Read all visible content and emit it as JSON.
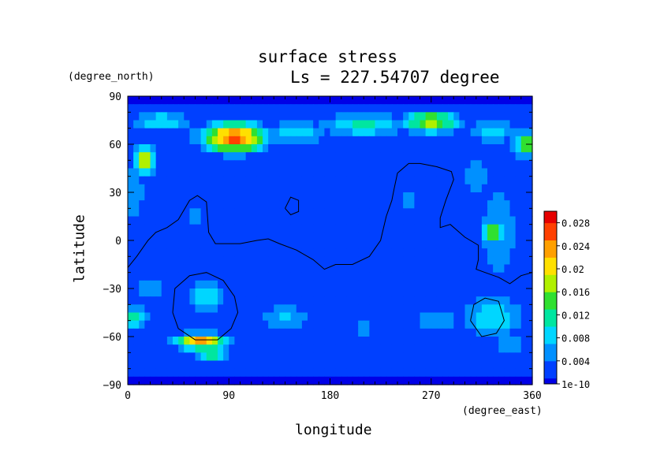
{
  "chart_data": {
    "type": "heatmap",
    "title": "surface stress",
    "subtitle": "Ls = 227.54707 degree",
    "xlabel": "longitude",
    "ylabel": "latitude",
    "x_unit": "(degree_east)",
    "y_unit": "(degree_north)",
    "xlim": [
      0,
      360
    ],
    "ylim": [
      -90,
      90
    ],
    "x_ticks": [
      "0",
      "90",
      "180",
      "270",
      "360"
    ],
    "y_ticks": [
      "90",
      "60",
      "30",
      "0",
      "−30",
      "−60",
      "−90"
    ],
    "colorbar_labels": [
      "0.028",
      "0.024",
      "0.02",
      "0.016",
      "0.012",
      "0.008",
      "0.004",
      "1e-10"
    ],
    "colorbar_range": [
      0,
      0.03
    ],
    "colormap": [
      "#0000e6",
      "#0040ff",
      "#0090ff",
      "#00d6ff",
      "#00e6a0",
      "#30e030",
      "#b0f000",
      "#ffe000",
      "#ffa000",
      "#ff4000",
      "#e60000"
    ],
    "background_value": 0.003,
    "features": [
      {
        "lon": 95,
        "lat": 64,
        "w": 28,
        "h": 9,
        "v": 0.028
      },
      {
        "lon": 95,
        "lat": 64,
        "w": 8,
        "h": 2.5,
        "v": 0.0305
      },
      {
        "lon": 30,
        "lat": 74,
        "w": 26,
        "h": 7,
        "v": 0.01
      },
      {
        "lon": 75,
        "lat": 67,
        "w": 18,
        "h": 6,
        "v": 0.012
      },
      {
        "lon": 150,
        "lat": 67,
        "w": 30,
        "h": 7,
        "v": 0.01
      },
      {
        "lon": 210,
        "lat": 72,
        "w": 40,
        "h": 8,
        "v": 0.011
      },
      {
        "lon": 270,
        "lat": 74,
        "w": 25,
        "h": 7,
        "v": 0.018
      },
      {
        "lon": 325,
        "lat": 68,
        "w": 20,
        "h": 8,
        "v": 0.01
      },
      {
        "lon": 355,
        "lat": 60,
        "w": 12,
        "h": 8,
        "v": 0.017
      },
      {
        "lon": 15,
        "lat": 50,
        "w": 10,
        "h": 8,
        "v": 0.02
      },
      {
        "lon": 5,
        "lat": 30,
        "w": 15,
        "h": 30,
        "v": 0.006
      },
      {
        "lon": 330,
        "lat": 5,
        "w": 18,
        "h": 35,
        "v": 0.008
      },
      {
        "lon": 325,
        "lat": 5,
        "w": 10,
        "h": 8,
        "v": 0.016
      },
      {
        "lon": 310,
        "lat": 40,
        "w": 18,
        "h": 20,
        "v": 0.006
      },
      {
        "lon": 250,
        "lat": 25,
        "w": 15,
        "h": 15,
        "v": 0.005
      },
      {
        "lon": 60,
        "lat": 15,
        "w": 25,
        "h": 15,
        "v": 0.005
      },
      {
        "lon": 20,
        "lat": -30,
        "w": 30,
        "h": 6,
        "v": 0.006
      },
      {
        "lon": 70,
        "lat": -35,
        "w": 22,
        "h": 10,
        "v": 0.009
      },
      {
        "lon": 5,
        "lat": -48,
        "w": 14,
        "h": 8,
        "v": 0.011
      },
      {
        "lon": 65,
        "lat": -63,
        "w": 22,
        "h": 5,
        "v": 0.025
      },
      {
        "lon": 75,
        "lat": -70,
        "w": 18,
        "h": 5,
        "v": 0.014
      },
      {
        "lon": 140,
        "lat": -48,
        "w": 25,
        "h": 8,
        "v": 0.008
      },
      {
        "lon": 210,
        "lat": -55,
        "w": 35,
        "h": 10,
        "v": 0.005
      },
      {
        "lon": 275,
        "lat": -50,
        "w": 22,
        "h": 10,
        "v": 0.007
      },
      {
        "lon": 325,
        "lat": -48,
        "w": 30,
        "h": 14,
        "v": 0.01
      },
      {
        "lon": 340,
        "lat": -65,
        "w": 12,
        "h": 6,
        "v": 0.009
      },
      {
        "lon": 180,
        "lat": -72,
        "w": 180,
        "h": 6,
        "v": 0.004
      }
    ],
    "contours": [
      [
        [
          0,
          -17
        ],
        [
          8,
          -10
        ],
        [
          18,
          0
        ],
        [
          25,
          5
        ],
        [
          35,
          8
        ],
        [
          45,
          13
        ],
        [
          55,
          25
        ],
        [
          62,
          28
        ],
        [
          70,
          24
        ],
        [
          72,
          5
        ],
        [
          78,
          -2
        ],
        [
          100,
          -2
        ],
        [
          115,
          0
        ],
        [
          125,
          1
        ],
        [
          135,
          -2
        ],
        [
          150,
          -6
        ],
        [
          165,
          -12
        ],
        [
          175,
          -18
        ],
        [
          185,
          -15
        ],
        [
          200,
          -15
        ],
        [
          215,
          -10
        ],
        [
          225,
          0
        ],
        [
          230,
          15
        ],
        [
          235,
          25
        ],
        [
          237,
          32
        ],
        [
          240,
          42
        ],
        [
          250,
          48
        ],
        [
          260,
          48
        ],
        [
          275,
          46
        ],
        [
          288,
          43
        ],
        [
          290,
          38
        ],
        [
          283,
          25
        ],
        [
          278,
          14
        ],
        [
          278,
          8
        ],
        [
          287,
          10
        ],
        [
          300,
          2
        ],
        [
          312,
          -3
        ],
        [
          312,
          -12
        ],
        [
          310,
          -18
        ],
        [
          318,
          -20
        ],
        [
          330,
          -23
        ],
        [
          340,
          -27
        ],
        [
          350,
          -22
        ],
        [
          360,
          -20
        ]
      ],
      [
        [
          140,
          20
        ],
        [
          145,
          27
        ],
        [
          152,
          25
        ],
        [
          152,
          18
        ],
        [
          145,
          16
        ],
        [
          140,
          20
        ]
      ],
      [
        [
          40,
          -45
        ],
        [
          42,
          -30
        ],
        [
          55,
          -22
        ],
        [
          70,
          -20
        ],
        [
          85,
          -25
        ],
        [
          95,
          -35
        ],
        [
          98,
          -45
        ],
        [
          92,
          -55
        ],
        [
          80,
          -62
        ],
        [
          60,
          -62
        ],
        [
          45,
          -55
        ],
        [
          40,
          -45
        ]
      ],
      [
        [
          305,
          -50
        ],
        [
          308,
          -40
        ],
        [
          318,
          -36
        ],
        [
          330,
          -38
        ],
        [
          335,
          -50
        ],
        [
          328,
          -58
        ],
        [
          315,
          -60
        ],
        [
          305,
          -50
        ]
      ]
    ]
  }
}
